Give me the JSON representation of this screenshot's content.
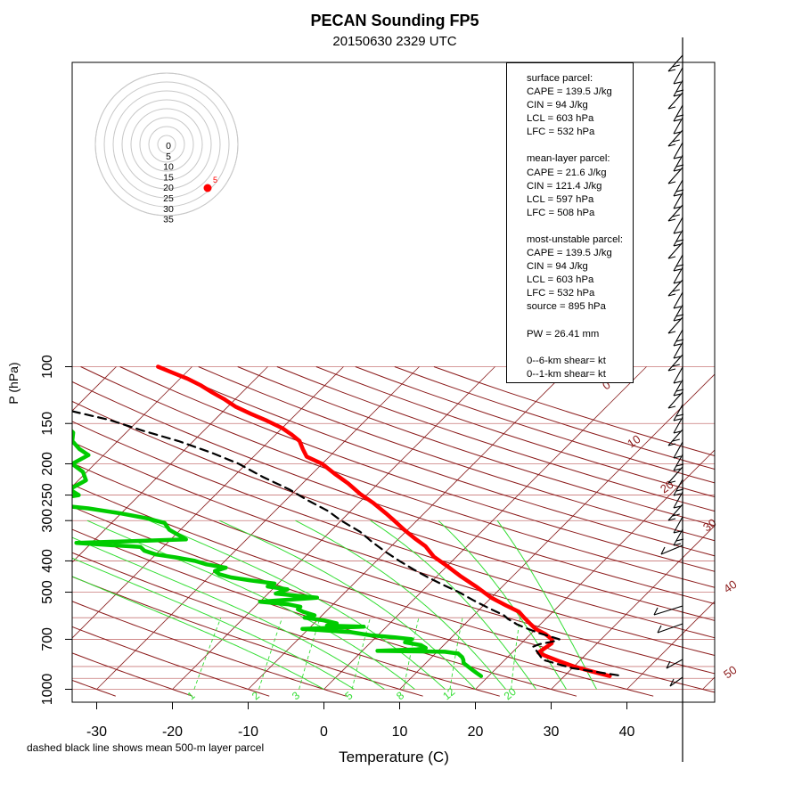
{
  "header": {
    "title": "PECAN Sounding FP5",
    "subtitle": "20150630 2329 UTC"
  },
  "footnote": "dashed black line shows mean 500-m layer parcel",
  "info": {
    "surface": {
      "heading": "surface parcel:",
      "cape": "CAPE = 139.5 J/kg",
      "cin": "CIN = 94 J/kg",
      "lcl": "LCL = 603 hPa",
      "lfc": "LFC = 532 hPa"
    },
    "mean_layer": {
      "heading": "mean-layer parcel:",
      "cape": "CAPE = 21.6 J/kg",
      "cin": "CIN = 121.4 J/kg",
      "lcl": "LCL = 597 hPa",
      "lfc": "LFC = 508 hPa"
    },
    "most_unstable": {
      "heading": "most-unstable parcel:",
      "cape": "CAPE = 139.5 J/kg",
      "cin": "CIN = 94 J/kg",
      "lcl": "LCL = 603 hPa",
      "lfc": "LFC = 532 hPa",
      "source": "source = 895 hPa"
    },
    "pw": "PW =  26.41  mm",
    "shear_06": "0--6-km shear=  kt",
    "shear_01": "0--1-km shear=  kt"
  },
  "colors": {
    "temperature": "#ff0000",
    "dewpoint": "#00cc00",
    "parcel": "#000000",
    "isotherm": "#8b2222",
    "isobar": "#c87878",
    "dry_adiabat": "#8b1a1a",
    "moist_adiabat": "#33dd33",
    "mixing_ratio": "#33dd33",
    "hodograph_ring": "#c8c8c8"
  },
  "chart_data": {
    "type": "line",
    "title": "PECAN Sounding FP5",
    "subtitle": "20150630 2329 UTC",
    "xlabel": "Temperature (C)",
    "ylabel": "P (hPa)",
    "xlim": [
      -33,
      46
    ],
    "ylim": [
      1000,
      100
    ],
    "x_ticks": [
      -30,
      -20,
      -10,
      0,
      10,
      20,
      30,
      40
    ],
    "y_ticks": [
      1000,
      700,
      500,
      400,
      300,
      250,
      200,
      150,
      100
    ],
    "mixing_ratio_labels": [
      "1",
      "2",
      "3",
      "5",
      "8",
      "12",
      "20"
    ],
    "dry_adiabat_labels": [
      "0",
      "10",
      "20",
      "30",
      "40",
      "50"
    ],
    "hodograph_labels": [
      "0",
      "5",
      "10",
      "15",
      "20",
      "25",
      "30",
      "35"
    ],
    "hodograph_marker_label": "5",
    "series": [
      {
        "name": "Temperature",
        "points": [
          [
            36,
            910
          ],
          [
            33,
            880
          ],
          [
            30,
            850
          ],
          [
            27.5,
            820
          ],
          [
            25,
            790
          ],
          [
            23.5,
            770
          ],
          [
            23.8,
            740
          ],
          [
            24,
            720
          ],
          [
            23.5,
            700
          ],
          [
            22,
            675
          ],
          [
            20,
            650
          ],
          [
            18.5,
            625
          ],
          [
            17,
            600
          ],
          [
            15.5,
            575
          ],
          [
            13,
            550
          ],
          [
            10,
            520
          ],
          [
            6.5,
            480
          ],
          [
            3,
            445
          ],
          [
            0,
            415
          ],
          [
            -3,
            388
          ],
          [
            -5.5,
            360
          ],
          [
            -8,
            340
          ],
          [
            -10.5,
            320
          ],
          [
            -13,
            300
          ],
          [
            -15,
            285
          ],
          [
            -18,
            265
          ],
          [
            -21,
            248
          ],
          [
            -24,
            230
          ],
          [
            -27,
            215
          ],
          [
            -30,
            200
          ],
          [
            -33,
            190
          ],
          [
            -34.5,
            180
          ],
          [
            -36,
            170
          ],
          [
            -38,
            162
          ],
          [
            -40,
            155
          ],
          [
            -43,
            147
          ],
          [
            -46,
            140
          ],
          [
            -49,
            133
          ],
          [
            -51.5,
            126
          ],
          [
            -54,
            120
          ],
          [
            -56.5,
            114
          ],
          [
            -59,
            109
          ],
          [
            -62,
            104
          ],
          [
            -64.5,
            100
          ]
        ]
      },
      {
        "name": "Dewpoint",
        "points": [
          [
            19,
            910
          ],
          [
            18,
            890
          ],
          [
            17,
            870
          ],
          [
            16,
            850
          ],
          [
            15,
            830
          ],
          [
            14.5,
            810
          ],
          [
            14,
            795
          ],
          [
            13,
            775
          ],
          [
            11,
            765
          ],
          [
            2,
            760
          ],
          [
            7,
            752
          ],
          [
            8,
            745
          ],
          [
            7,
            730
          ],
          [
            4.5,
            715
          ],
          [
            5,
            700
          ],
          [
            2.5,
            690
          ],
          [
            -1,
            680
          ],
          [
            -4,
            665
          ],
          [
            -10.8,
            650
          ],
          [
            -3,
            640
          ],
          [
            -8,
            635
          ],
          [
            -7,
            625
          ],
          [
            -9,
            612
          ],
          [
            -12,
            600
          ],
          [
            -11,
            590
          ],
          [
            -13,
            575
          ],
          [
            -14,
            565
          ],
          [
            -14,
            555
          ],
          [
            -16,
            545
          ],
          [
            -20,
            535
          ],
          [
            -13,
            520
          ],
          [
            -19,
            505
          ],
          [
            -18,
            490
          ],
          [
            -21,
            480
          ],
          [
            -20.5,
            470
          ],
          [
            -24,
            460
          ],
          [
            -27,
            450
          ],
          [
            -29,
            440
          ],
          [
            -30,
            430
          ],
          [
            -29,
            420
          ],
          [
            -32,
            410
          ],
          [
            -34,
            400
          ],
          [
            -37,
            390
          ],
          [
            -40,
            382
          ],
          [
            -42,
            372
          ],
          [
            -43,
            362
          ],
          [
            -52,
            352
          ],
          [
            -38,
            343
          ],
          [
            -39.5,
            333
          ],
          [
            -41.5,
            320
          ],
          [
            -43,
            305
          ],
          [
            -46,
            295
          ],
          [
            -50,
            285
          ],
          [
            -55,
            275
          ],
          [
            -60,
            268
          ],
          [
            -61,
            258
          ],
          [
            -58,
            250
          ],
          [
            -60,
            240
          ],
          [
            -59,
            225
          ],
          [
            -60.5,
            212
          ],
          [
            -63,
            200
          ],
          [
            -62,
            188
          ],
          [
            -64,
            180
          ],
          [
            -66,
            170
          ],
          [
            -67,
            160
          ],
          [
            -69,
            152
          ],
          [
            -72,
            147
          ]
        ]
      },
      {
        "name": "Mean 500-m layer parcel",
        "points": [
          [
            37,
            905
          ],
          [
            30,
            860
          ],
          [
            25,
            810
          ],
          [
            24,
            785
          ],
          [
            23,
            760
          ],
          [
            22,
            738
          ],
          [
            22.5,
            725
          ],
          [
            24,
            710
          ],
          [
            24.5,
            700
          ],
          [
            21,
            670
          ],
          [
            19,
            650
          ],
          [
            17,
            630
          ],
          [
            15,
            605
          ],
          [
            14,
            590
          ],
          [
            11,
            560
          ],
          [
            8,
            530
          ],
          [
            5,
            500
          ],
          [
            2,
            475
          ],
          [
            -1,
            450
          ],
          [
            -4,
            425
          ],
          [
            -7,
            400
          ],
          [
            -10,
            375
          ],
          [
            -13,
            350
          ],
          [
            -16,
            325
          ],
          [
            -20,
            300
          ],
          [
            -23,
            280
          ],
          [
            -27,
            260
          ],
          [
            -31,
            240
          ],
          [
            -36,
            220
          ],
          [
            -41,
            200
          ],
          [
            -46,
            185
          ],
          [
            -52,
            170
          ],
          [
            -58,
            158
          ],
          [
            -64,
            146
          ],
          [
            -71,
            136
          ],
          [
            -78,
            126
          ],
          [
            -85,
            118
          ],
          [
            -92,
            111
          ],
          [
            -99,
            104
          ],
          [
            -104,
            100
          ]
        ]
      }
    ]
  }
}
